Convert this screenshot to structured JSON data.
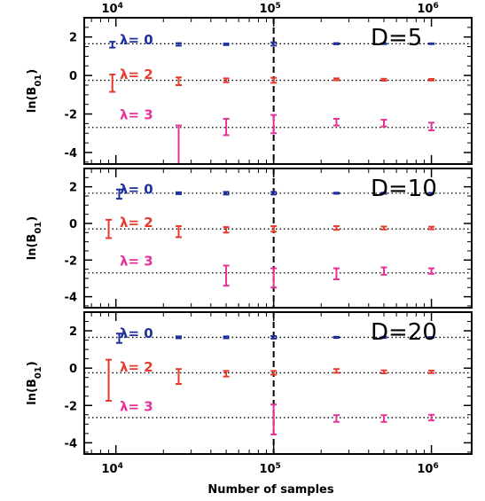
{
  "chart_data": {
    "type": "errorbar",
    "xscale": "log",
    "xlim": [
      6300,
      1800000
    ],
    "xlabel": "Number of samples",
    "ylabel": "ln(B",
    "ylabel_sub": "01",
    "ylabel_close": ")",
    "x_ticks": [
      {
        "value": 10000,
        "base": "10",
        "exp": "4"
      },
      {
        "value": 100000,
        "base": "10",
        "exp": "5"
      },
      {
        "value": 1000000,
        "base": "10",
        "exp": "6"
      }
    ],
    "vline_x": 100000,
    "colors": {
      "lambda0": "#1f2f9c",
      "lambda2": "#e53a2e",
      "lambda3": "#e8309a",
      "frame": "#000000"
    },
    "panels": [
      {
        "label": "D=5",
        "ylim": [
          -4.6,
          3.0
        ],
        "y_ticks": [
          "2",
          "0",
          "-2",
          "-4"
        ],
        "reference_lines": [
          1.65,
          -0.25,
          -2.7
        ],
        "series": [
          {
            "name": "λ= 0",
            "color_key": "lambda0",
            "points": [
              [
                9500,
                1.6,
                1.45,
                1.75
              ],
              [
                25000,
                1.62,
                1.55,
                1.68
              ],
              [
                50000,
                1.62,
                1.58,
                1.66
              ],
              [
                100000,
                1.65,
                1.55,
                1.72
              ],
              [
                250000,
                1.65,
                1.62,
                1.68
              ],
              [
                500000,
                1.65,
                1.63,
                1.67
              ],
              [
                1000000,
                1.65,
                1.63,
                1.67
              ]
            ]
          },
          {
            "name": "λ= 2",
            "color_key": "lambda2",
            "points": [
              [
                9500,
                -0.4,
                -0.85,
                0.05
              ],
              [
                25000,
                -0.3,
                -0.5,
                -0.1
              ],
              [
                50000,
                -0.25,
                -0.35,
                -0.15
              ],
              [
                100000,
                -0.25,
                -0.38,
                -0.12
              ],
              [
                250000,
                -0.2,
                -0.25,
                -0.15
              ],
              [
                500000,
                -0.22,
                -0.27,
                -0.17
              ],
              [
                1000000,
                -0.22,
                -0.26,
                -0.18
              ]
            ]
          },
          {
            "name": "λ= 3",
            "color_key": "lambda3",
            "points": [
              [
                25000,
                -3.8,
                -4.6,
                -2.6
              ],
              [
                50000,
                -2.7,
                -3.1,
                -2.25
              ],
              [
                100000,
                -2.55,
                -3.0,
                -2.05
              ],
              [
                250000,
                -2.45,
                -2.6,
                -2.25
              ],
              [
                500000,
                -2.5,
                -2.65,
                -2.3
              ],
              [
                1000000,
                -2.65,
                -2.85,
                -2.45
              ]
            ]
          }
        ]
      },
      {
        "label": "D=10",
        "ylim": [
          -4.6,
          3.0
        ],
        "y_ticks": [
          "2",
          "0",
          "-2",
          "-4"
        ],
        "reference_lines": [
          1.65,
          -0.3,
          -2.7
        ],
        "series": [
          {
            "name": "λ= 0",
            "color_key": "lambda0",
            "points": [
              [
                10500,
                1.6,
                1.35,
                1.85
              ],
              [
                25000,
                1.65,
                1.6,
                1.7
              ],
              [
                50000,
                1.65,
                1.58,
                1.72
              ],
              [
                100000,
                1.65,
                1.58,
                1.72
              ],
              [
                250000,
                1.65,
                1.62,
                1.68
              ],
              [
                500000,
                1.65,
                1.62,
                1.68
              ],
              [
                1000000,
                1.65,
                1.63,
                1.67
              ]
            ]
          },
          {
            "name": "λ= 2",
            "color_key": "lambda2",
            "points": [
              [
                9000,
                -0.3,
                -0.8,
                0.2
              ],
              [
                25000,
                -0.45,
                -0.75,
                -0.15
              ],
              [
                50000,
                -0.35,
                -0.5,
                -0.2
              ],
              [
                100000,
                -0.3,
                -0.45,
                -0.15
              ],
              [
                250000,
                -0.25,
                -0.35,
                -0.15
              ],
              [
                500000,
                -0.25,
                -0.33,
                -0.17
              ],
              [
                1000000,
                -0.25,
                -0.32,
                -0.18
              ]
            ]
          },
          {
            "name": "λ= 3",
            "color_key": "lambda3",
            "points": [
              [
                50000,
                -2.85,
                -3.4,
                -2.3
              ],
              [
                100000,
                -2.95,
                -3.5,
                -2.45
              ],
              [
                250000,
                -2.75,
                -3.05,
                -2.45
              ],
              [
                500000,
                -2.6,
                -2.8,
                -2.4
              ],
              [
                1000000,
                -2.6,
                -2.75,
                -2.45
              ]
            ]
          }
        ]
      },
      {
        "label": "D=20",
        "ylim": [
          -4.6,
          3.0
        ],
        "y_ticks": [
          "2",
          "0",
          "-2",
          "-4"
        ],
        "reference_lines": [
          1.65,
          -0.25,
          -2.65
        ],
        "series": [
          {
            "name": "λ= 0",
            "color_key": "lambda0",
            "points": [
              [
                10500,
                1.6,
                1.35,
                1.85
              ],
              [
                25000,
                1.65,
                1.6,
                1.7
              ],
              [
                50000,
                1.65,
                1.6,
                1.7
              ],
              [
                100000,
                1.65,
                1.58,
                1.72
              ],
              [
                250000,
                1.65,
                1.62,
                1.68
              ],
              [
                500000,
                1.65,
                1.62,
                1.68
              ],
              [
                1000000,
                1.65,
                1.63,
                1.67
              ]
            ]
          },
          {
            "name": "λ= 2",
            "color_key": "lambda2",
            "points": [
              [
                9000,
                -0.65,
                -1.75,
                0.45
              ],
              [
                25000,
                -0.45,
                -0.85,
                -0.05
              ],
              [
                50000,
                -0.3,
                -0.45,
                -0.15
              ],
              [
                100000,
                -0.25,
                -0.35,
                -0.15
              ],
              [
                250000,
                -0.15,
                -0.25,
                -0.05
              ],
              [
                500000,
                -0.2,
                -0.28,
                -0.12
              ],
              [
                1000000,
                -0.2,
                -0.27,
                -0.13
              ]
            ]
          },
          {
            "name": "λ= 3",
            "color_key": "lambda3",
            "points": [
              [
                100000,
                -2.75,
                -3.55,
                -1.95
              ],
              [
                250000,
                -2.7,
                -2.88,
                -2.52
              ],
              [
                500000,
                -2.7,
                -2.88,
                -2.52
              ],
              [
                1000000,
                -2.65,
                -2.8,
                -2.5
              ]
            ]
          }
        ]
      }
    ]
  }
}
